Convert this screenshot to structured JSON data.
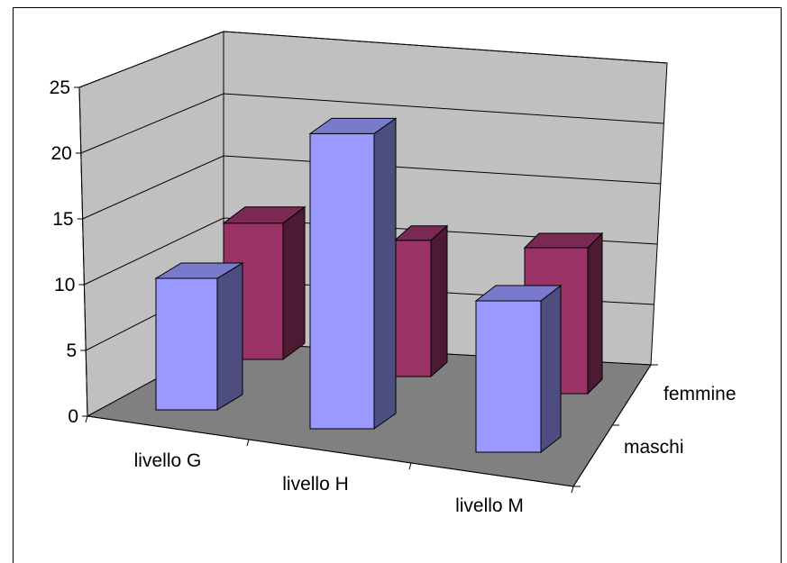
{
  "chart_data": {
    "type": "bar",
    "categories": [
      "livello G",
      "livello H",
      "livello M"
    ],
    "series": [
      {
        "name": "maschi",
        "values": [
          10,
          21,
          10
        ],
        "color": "#9999ff"
      },
      {
        "name": "femmine",
        "values": [
          14,
          14,
          15
        ],
        "color": "#993366"
      }
    ],
    "y_ticks": [
      "0",
      "5",
      "10",
      "15",
      "20",
      "25"
    ],
    "ylim": [
      0,
      25
    ],
    "grid": true,
    "three_d": true,
    "wall_color": "#c0c0c0",
    "floor_color": "#808080"
  }
}
